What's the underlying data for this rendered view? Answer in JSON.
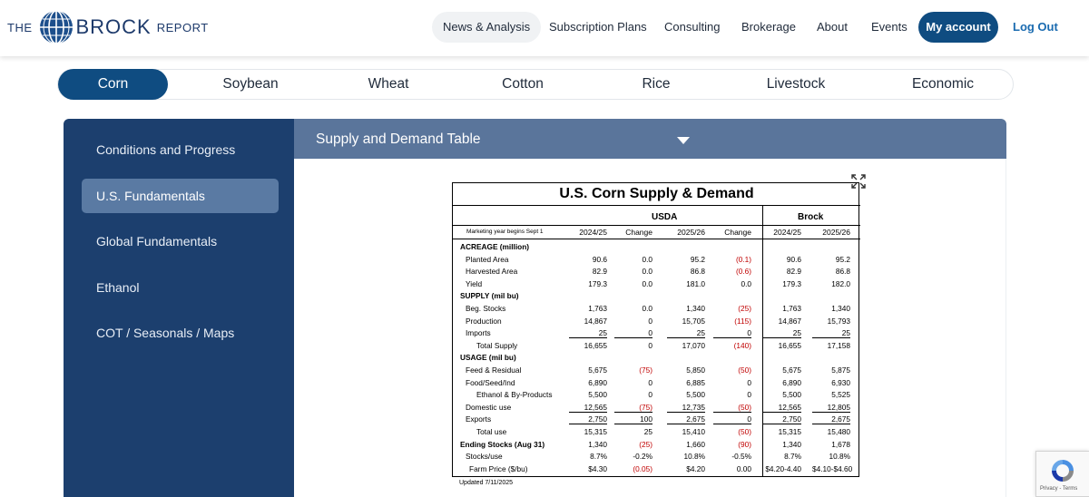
{
  "header": {
    "logo": {
      "the": "THE",
      "brock": "BROCK",
      "report": "REPORT"
    },
    "nav": [
      "News & Analysis",
      "Subscription Plans",
      "Consulting",
      "Brokerage",
      "About",
      "Events"
    ],
    "account_label": "My account",
    "logout_label": "Log Out",
    "brand_color": "#0f4c81"
  },
  "tabs": [
    "Corn",
    "Soybean",
    "Wheat",
    "Cotton",
    "Rice",
    "Livestock",
    "Economic"
  ],
  "active_tab": "Corn",
  "sidebar": {
    "items": [
      "Conditions and Progress",
      "U.S. Fundamentals",
      "Global Fundamentals",
      "Ethanol",
      "COT / Seasonals / Maps"
    ],
    "active": "U.S. Fundamentals"
  },
  "content": {
    "title": "Supply and Demand Table",
    "expand_icon": "expand-icon"
  },
  "table": {
    "title": "U.S. Corn Supply & Demand",
    "group_usda": "USDA",
    "group_brock": "Brock",
    "marketing_year": "Marketing year begins Sept 1",
    "columns": [
      "2024/25",
      "Change",
      "2025/26",
      "Change",
      "2024/25",
      "2025/26"
    ],
    "rows": [
      {
        "label": "ACREAGE (million)",
        "kind": "section",
        "cells": [
          "",
          "",
          "",
          "",
          "",
          ""
        ]
      },
      {
        "label": "Planted Area",
        "kind": "item",
        "cells": [
          "90.6",
          "0.0",
          "95.2",
          "(0.1)",
          "90.6",
          "95.2"
        ]
      },
      {
        "label": "Harvested Area",
        "kind": "item",
        "cells": [
          "82.9",
          "0.0",
          "86.8",
          "(0.6)",
          "82.9",
          "86.8"
        ]
      },
      {
        "label": "Yield",
        "kind": "item",
        "cells": [
          "179.3",
          "0.0",
          "181.0",
          "0.0",
          "179.3",
          "182.0"
        ]
      },
      {
        "label": "SUPPLY (mil bu)",
        "kind": "section",
        "cells": [
          "",
          "",
          "",
          "",
          "",
          ""
        ]
      },
      {
        "label": "Beg. Stocks",
        "kind": "item",
        "cells": [
          "1,763",
          "0.0",
          "1,340",
          "(25)",
          "1,763",
          "1,340"
        ]
      },
      {
        "label": "Production",
        "kind": "item",
        "cells": [
          "14,867",
          "0",
          "15,705",
          "(115)",
          "14,867",
          "15,793"
        ]
      },
      {
        "label": "Imports",
        "kind": "item-ul",
        "cells": [
          "25",
          "0",
          "25",
          "0",
          "25",
          "25"
        ]
      },
      {
        "label": "Total Supply",
        "kind": "total",
        "cells": [
          "16,655",
          "0",
          "17,070",
          "(140)",
          "16,655",
          "17,158"
        ]
      },
      {
        "label": "USAGE (mil bu)",
        "kind": "section",
        "cells": [
          "",
          "",
          "",
          "",
          "",
          ""
        ]
      },
      {
        "label": "Feed & Residual",
        "kind": "item",
        "cells": [
          "5,675",
          "(75)",
          "5,850",
          "(50)",
          "5,675",
          "5,875"
        ]
      },
      {
        "label": "Food/Seed/Ind",
        "kind": "item",
        "cells": [
          "6,890",
          "0",
          "6,885",
          "0",
          "6,890",
          "6,930"
        ]
      },
      {
        "label": "Ethanol & By-Products",
        "kind": "sub",
        "cells": [
          "5,500",
          "0",
          "5,500",
          "0",
          "5,500",
          "5,525"
        ]
      },
      {
        "label": "Domestic use",
        "kind": "item-ul",
        "cells": [
          "12,565",
          "(75)",
          "12,735",
          "(50)",
          "12,565",
          "12,805"
        ]
      },
      {
        "label": "Exports",
        "kind": "item-ul",
        "cells": [
          "2,750",
          "100",
          "2,675",
          "0",
          "2,750",
          "2,675"
        ]
      },
      {
        "label": "Total use",
        "kind": "total",
        "cells": [
          "15,315",
          "25",
          "15,410",
          "(50)",
          "15,315",
          "15,480"
        ]
      },
      {
        "label": "Ending Stocks (Aug 31)",
        "kind": "section-val",
        "cells": [
          "1,340",
          "(25)",
          "1,660",
          "(90)",
          "1,340",
          "1,678"
        ]
      },
      {
        "label": "Stocks/use",
        "kind": "item",
        "cells": [
          "8.7%",
          "-0.2%",
          "10.8%",
          "-0.5%",
          "8.7%",
          "10.8%"
        ]
      },
      {
        "label": "Farm Price ($/bu)",
        "kind": "sub2",
        "cells": [
          "$4.30",
          "(0.05)",
          "$4.20",
          "0.00",
          "$4.20-4.40",
          "$4.10-$4.60"
        ]
      }
    ],
    "updated": "Updated 7/11/2025",
    "negative_color": "#c00000"
  },
  "recaptcha": {
    "text": "Privacy - Terms"
  }
}
